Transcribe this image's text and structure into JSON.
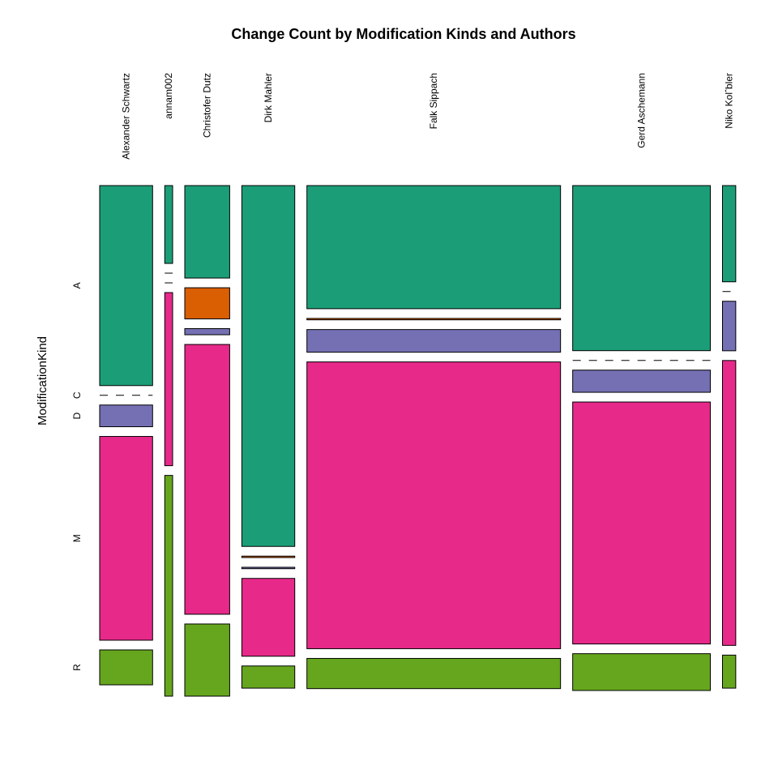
{
  "chart_data": {
    "type": "mosaic",
    "title": "Change Count by Modification Kinds and Authors",
    "ylabel": "ModificationKind",
    "categories": [
      "Alexander Schwartz",
      "annam002",
      "Christofer Dutz",
      "Dirk Mahler",
      "Falk Sippach",
      "Gerd Aschemann",
      "Niko Kolˆbler"
    ],
    "column_widths": [
      0.0982,
      0.0146,
      0.0833,
      0.0982,
      0.4706,
      0.2554,
      0.0246
    ],
    "kinds": [
      "A",
      "C",
      "D",
      "M",
      "R"
    ],
    "kind_labels": [
      "A",
      "C",
      "D",
      "M",
      "R"
    ],
    "colors": {
      "A": "#1b9e77",
      "C": "#d95f02",
      "D": "#7570b3",
      "M": "#e7298a",
      "R": "#66a61e"
    },
    "series": [
      {
        "name": "A",
        "values": [
          0.424,
          0.165,
          0.196,
          0.765,
          0.261,
          0.35,
          0.204
        ]
      },
      {
        "name": "C",
        "values": [
          0.0,
          0.0,
          0.066,
          0.003,
          0.003,
          0.0,
          0.0
        ]
      },
      {
        "name": "D",
        "values": [
          0.046,
          0.0,
          0.013,
          0.003,
          0.048,
          0.047,
          0.105
        ]
      },
      {
        "name": "M",
        "values": [
          0.432,
          0.367,
          0.572,
          0.165,
          0.608,
          0.513,
          0.604
        ]
      },
      {
        "name": "R",
        "values": [
          0.074,
          0.468,
          0.153,
          0.047,
          0.064,
          0.078,
          0.07
        ]
      }
    ]
  }
}
